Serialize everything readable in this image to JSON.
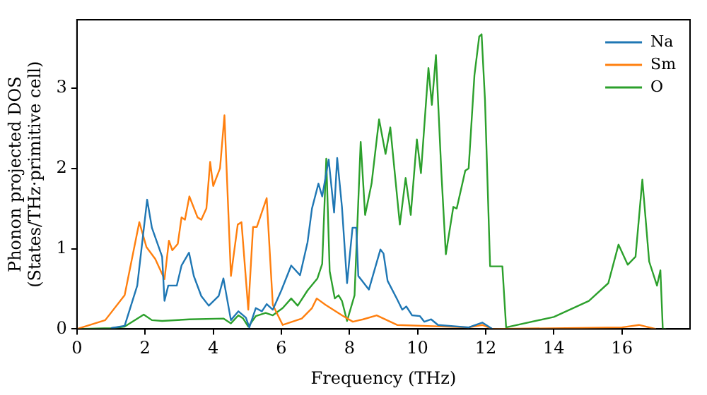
{
  "chart_data": {
    "type": "line",
    "xlabel": "Frequency (THz)",
    "ylabel": "Phonon projected DOS\n(States/THz·primitive cell)",
    "xlim": [
      0,
      18
    ],
    "ylim": [
      0,
      3.85
    ],
    "xticks": [
      0,
      2,
      4,
      6,
      8,
      10,
      12,
      14,
      16
    ],
    "yticks": [
      0,
      1,
      2,
      3
    ],
    "grid": false,
    "legend": "top right",
    "marker": "none",
    "line_style": "solid",
    "series": [
      {
        "name": "Na",
        "color": "#1f77b4",
        "x": [
          1.0,
          1.4,
          1.77,
          2.06,
          2.2,
          2.5,
          2.57,
          2.68,
          2.93,
          3.07,
          3.29,
          3.43,
          3.65,
          3.87,
          4.16,
          4.3,
          4.52,
          4.74,
          4.96,
          5.06,
          5.25,
          5.43,
          5.57,
          5.75,
          6.0,
          6.29,
          6.55,
          6.77,
          6.9,
          7.09,
          7.2,
          7.39,
          7.55,
          7.64,
          7.78,
          7.93,
          8.09,
          8.2,
          8.26,
          8.57,
          8.91,
          9.0,
          9.12,
          9.4,
          9.55,
          9.67,
          9.84,
          10.07,
          10.2,
          10.4,
          10.6,
          11.5,
          11.9,
          12.2
        ],
        "values": [
          0.01,
          0.04,
          0.54,
          1.61,
          1.26,
          0.9,
          0.35,
          0.54,
          0.54,
          0.79,
          0.95,
          0.66,
          0.41,
          0.29,
          0.41,
          0.63,
          0.11,
          0.22,
          0.14,
          0.02,
          0.26,
          0.22,
          0.31,
          0.24,
          0.48,
          0.79,
          0.67,
          1.08,
          1.5,
          1.81,
          1.65,
          2.11,
          1.45,
          2.13,
          1.52,
          0.57,
          1.26,
          1.26,
          0.66,
          0.49,
          0.99,
          0.94,
          0.6,
          0.37,
          0.24,
          0.28,
          0.17,
          0.16,
          0.09,
          0.12,
          0.05,
          0.02,
          0.08,
          0
        ]
      },
      {
        "name": "Sm",
        "color": "#ff7f0e",
        "x": [
          0,
          0.83,
          1.4,
          1.83,
          2.04,
          2.3,
          2.57,
          2.7,
          2.8,
          2.96,
          3.07,
          3.17,
          3.3,
          3.54,
          3.65,
          3.8,
          3.91,
          4.0,
          4.2,
          4.33,
          4.52,
          4.72,
          4.83,
          5.03,
          5.17,
          5.28,
          5.57,
          5.75,
          6.04,
          6.6,
          6.9,
          7.04,
          7.3,
          7.78,
          8.1,
          8.4,
          8.8,
          9.4,
          11.5,
          11.9,
          12.2,
          16.0,
          16.5,
          17.0
        ],
        "values": [
          0,
          0.11,
          0.42,
          1.33,
          1.02,
          0.87,
          0.62,
          1.1,
          0.98,
          1.06,
          1.39,
          1.36,
          1.65,
          1.39,
          1.36,
          1.5,
          2.08,
          1.78,
          2.0,
          2.66,
          0.66,
          1.3,
          1.33,
          0.24,
          1.27,
          1.27,
          1.63,
          0.3,
          0.05,
          0.13,
          0.26,
          0.38,
          0.3,
          0.17,
          0.09,
          0.12,
          0.17,
          0.05,
          0.02,
          0.05,
          0,
          0.02,
          0.05,
          0
        ]
      },
      {
        "name": "O",
        "color": "#2ca02c",
        "x": [
          0,
          1.0,
          1.4,
          1.96,
          2.2,
          2.5,
          3.3,
          4.3,
          4.52,
          4.74,
          4.88,
          5.03,
          5.25,
          5.54,
          5.75,
          6.04,
          6.29,
          6.48,
          6.77,
          7.06,
          7.2,
          7.32,
          7.42,
          7.57,
          7.68,
          7.78,
          7.93,
          8.15,
          8.33,
          8.46,
          8.65,
          8.87,
          9.06,
          9.2,
          9.48,
          9.65,
          9.8,
          9.98,
          10.1,
          10.32,
          10.42,
          10.54,
          10.7,
          10.83,
          11.05,
          11.15,
          11.4,
          11.5,
          11.67,
          11.81,
          11.88,
          11.98,
          12.13,
          12.28,
          12.49,
          12.6,
          14.0,
          15.03,
          15.6,
          15.9,
          16.17,
          16.4,
          16.6,
          16.8,
          17.03,
          17.13,
          17.2,
          17.3
        ],
        "values": [
          0,
          0.01,
          0.03,
          0.18,
          0.11,
          0.1,
          0.12,
          0.13,
          0.07,
          0.17,
          0.13,
          0.03,
          0.16,
          0.2,
          0.17,
          0.26,
          0.38,
          0.29,
          0.48,
          0.63,
          0.81,
          2.12,
          0.72,
          0.38,
          0.42,
          0.35,
          0.1,
          0.42,
          2.33,
          1.42,
          1.81,
          2.61,
          2.18,
          2.51,
          1.3,
          1.88,
          1.42,
          2.36,
          1.94,
          3.25,
          2.79,
          3.41,
          1.94,
          0.93,
          1.52,
          1.5,
          1.97,
          2.0,
          3.16,
          3.64,
          3.67,
          2.85,
          0.78,
          0.78,
          0.78,
          0.02,
          0.15,
          0.35,
          0.57,
          1.05,
          0.8,
          0.9,
          1.86,
          0.84,
          0.54,
          0.73,
          0,
          0
        ]
      }
    ]
  }
}
